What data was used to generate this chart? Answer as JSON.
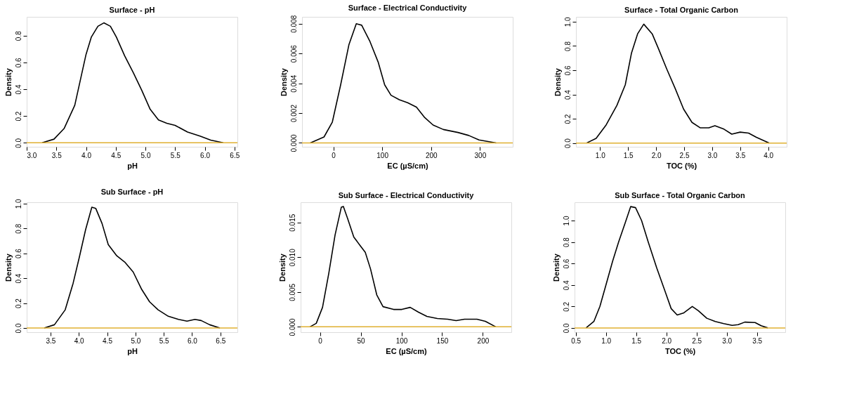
{
  "chart_data": [
    {
      "type": "line",
      "title": "Surface - pH",
      "xlabel": "pH",
      "ylabel": "Density",
      "xlim": [
        3.0,
        6.55
      ],
      "ylim": [
        -0.03,
        0.94
      ],
      "xticks": [
        {
          "value": 3.0,
          "label": "3.0"
        },
        {
          "value": 3.5,
          "label": "3.5"
        },
        {
          "value": 4.0,
          "label": "4.0"
        },
        {
          "value": 4.5,
          "label": "4.5"
        },
        {
          "value": 5.0,
          "label": "5.0"
        },
        {
          "value": 5.5,
          "label": "5.5"
        },
        {
          "value": 6.0,
          "label": "6.0"
        },
        {
          "value": 6.5,
          "label": "6.5"
        }
      ],
      "yticks": [
        {
          "value": 0,
          "label": "0.0"
        },
        0.2,
        0.4,
        0.6,
        0.8
      ],
      "grid": false,
      "marker": "none",
      "line_style": "solid",
      "ref_lines": [
        {
          "axis": "y",
          "value": 0,
          "color": "#e0b030"
        }
      ],
      "series": [
        {
          "color": "#000000",
          "x": [
            3.26,
            3.46,
            3.63,
            3.81,
            3.92,
            4.0,
            4.09,
            4.2,
            4.3,
            4.41,
            4.51,
            4.65,
            4.8,
            4.94,
            5.08,
            5.22,
            5.36,
            5.5,
            5.71,
            5.92,
            6.1,
            6.31
          ],
          "values": [
            0,
            0.027,
            0.106,
            0.28,
            0.5,
            0.66,
            0.79,
            0.87,
            0.895,
            0.87,
            0.79,
            0.65,
            0.52,
            0.39,
            0.25,
            0.17,
            0.146,
            0.13,
            0.08,
            0.05,
            0.02,
            0
          ]
        }
      ]
    },
    {
      "type": "line",
      "title": "Surface - Electrical Conductivity",
      "xlabel": "EC (µS/cm)",
      "ylabel": "Density",
      "xlim": [
        -64,
        367
      ],
      "ylim": [
        -0.00026,
        0.00846
      ],
      "xticks": [
        0,
        100,
        200,
        300
      ],
      "yticks": [
        {
          "value": 0,
          "label": "0.000"
        },
        {
          "value": 0.002,
          "label": "0.002"
        },
        {
          "value": 0.004,
          "label": "0.004"
        },
        {
          "value": 0.006,
          "label": "0.006"
        },
        {
          "value": 0.008,
          "label": "0.008"
        }
      ],
      "grid": false,
      "marker": "none",
      "line_style": "solid",
      "ref_lines": [
        {
          "axis": "y",
          "value": 0,
          "color": "#e0b030"
        }
      ],
      "series": [
        {
          "color": "#000000",
          "x": [
            -47,
            -19,
            -2,
            15,
            32,
            47,
            58,
            75,
            92,
            105,
            118,
            135,
            152,
            170,
            187,
            204,
            225,
            255,
            277,
            298,
            333
          ],
          "values": [
            0,
            0.0004,
            0.0014,
            0.0039,
            0.0066,
            0.008,
            0.0079,
            0.0068,
            0.0054,
            0.0039,
            0.0032,
            0.0029,
            0.0027,
            0.0024,
            0.0017,
            0.0012,
            0.0009,
            0.0007,
            0.0005,
            0.0002,
            0
          ]
        }
      ]
    },
    {
      "type": "line",
      "title": "Surface - Total Organic Carbon",
      "xlabel": "TOC (%)",
      "ylabel": "Density",
      "xlim": [
        0.57,
        4.33
      ],
      "ylim": [
        -0.031,
        1.04
      ],
      "xticks": [
        {
          "value": 1.0,
          "label": "1.0"
        },
        1.5,
        {
          "value": 2.0,
          "label": "2.0"
        },
        2.5,
        {
          "value": 3.0,
          "label": "3.0"
        },
        3.5,
        {
          "value": 4.0,
          "label": "4.0"
        }
      ],
      "yticks": [
        {
          "value": 0,
          "label": "0.0"
        },
        0.2,
        0.4,
        0.6,
        0.8,
        {
          "value": 1.0,
          "label": "1.0"
        }
      ],
      "grid": false,
      "marker": "none",
      "line_style": "solid",
      "ref_lines": [
        {
          "axis": "y",
          "value": 0,
          "color": "#e0b030"
        }
      ],
      "series": [
        {
          "color": "#000000",
          "x": [
            0.76,
            0.93,
            1.11,
            1.3,
            1.45,
            1.56,
            1.67,
            1.78,
            1.93,
            2.04,
            2.19,
            2.34,
            2.49,
            2.64,
            2.79,
            2.94,
            3.05,
            3.2,
            3.35,
            3.5,
            3.65,
            3.79,
            4.02
          ],
          "values": [
            0,
            0.038,
            0.15,
            0.31,
            0.48,
            0.74,
            0.9,
            0.98,
            0.9,
            0.78,
            0.61,
            0.45,
            0.28,
            0.17,
            0.125,
            0.125,
            0.143,
            0.117,
            0.073,
            0.09,
            0.082,
            0.047,
            0
          ]
        }
      ]
    },
    {
      "type": "line",
      "title": "Sub Surface - pH",
      "xlabel": "pH",
      "ylabel": "Density",
      "xlim": [
        3.08,
        6.8
      ],
      "ylim": [
        -0.034,
        1.01
      ],
      "xticks": [
        3.5,
        {
          "value": 4.0,
          "label": "4.0"
        },
        4.5,
        {
          "value": 5.0,
          "label": "5.0"
        },
        5.5,
        {
          "value": 6.0,
          "label": "6.0"
        },
        6.5
      ],
      "yticks": [
        {
          "value": 0,
          "label": "0.0"
        },
        0.2,
        0.4,
        0.6,
        0.8,
        {
          "value": 1.0,
          "label": "1.0"
        }
      ],
      "grid": false,
      "marker": "none",
      "line_style": "solid",
      "ref_lines": [
        {
          "axis": "y",
          "value": 0,
          "color": "#e0b030"
        }
      ],
      "series": [
        {
          "color": "#000000",
          "x": [
            3.39,
            3.57,
            3.76,
            3.9,
            4.01,
            4.12,
            4.23,
            4.3,
            4.41,
            4.52,
            4.67,
            4.81,
            4.96,
            5.11,
            5.25,
            5.4,
            5.58,
            5.76,
            5.91,
            6.05,
            6.16,
            6.31,
            6.49
          ],
          "values": [
            0,
            0.026,
            0.146,
            0.36,
            0.57,
            0.79,
            0.97,
            0.96,
            0.84,
            0.67,
            0.58,
            0.53,
            0.45,
            0.31,
            0.21,
            0.146,
            0.094,
            0.069,
            0.055,
            0.069,
            0.06,
            0.026,
            0
          ]
        }
      ]
    },
    {
      "type": "line",
      "title": "Sub Surface - Electrical Conductivity",
      "xlabel": "EC (µS/cm)",
      "ylabel": "Density",
      "xlim": [
        -23.8,
        235
      ],
      "ylim": [
        -0.00077,
        0.0179
      ],
      "xticks": [
        0,
        50,
        100,
        150,
        200
      ],
      "yticks": [
        {
          "value": 0,
          "label": "0.000"
        },
        {
          "value": 0.005,
          "label": "0.005"
        },
        {
          "value": 0.01,
          "label": "0.010"
        },
        {
          "value": 0.015,
          "label": "0.015"
        }
      ],
      "grid": false,
      "marker": "none",
      "line_style": "solid",
      "ref_lines": [
        {
          "axis": "y",
          "value": 0,
          "color": "#e0b030"
        }
      ],
      "series": [
        {
          "color": "#000000",
          "x": [
            -12.3,
            -4.6,
            3.1,
            10.8,
            18.5,
            26.2,
            28.7,
            33.8,
            41.5,
            49.2,
            55.6,
            62.1,
            69.7,
            77.4,
            90.3,
            100.5,
            110.8,
            121.0,
            131.3,
            144.1,
            156.9,
            167.2,
            177.4,
            192.8,
            203.1,
            215.9
          ],
          "values": [
            0,
            0.0005,
            0.0028,
            0.0077,
            0.0132,
            0.0172,
            0.0173,
            0.0156,
            0.0129,
            0.0117,
            0.0107,
            0.0083,
            0.0046,
            0.0029,
            0.0025,
            0.0025,
            0.0028,
            0.0021,
            0.0015,
            0.0012,
            0.0011,
            0.0009,
            0.0011,
            0.0011,
            0.0008,
            0
          ]
        }
      ]
    },
    {
      "type": "line",
      "title": "Sub Surface - Total Organic Carbon",
      "xlabel": "TOC (%)",
      "ylabel": "Density",
      "xlim": [
        0.48,
        3.97
      ],
      "ylim": [
        -0.04,
        1.17
      ],
      "xticks": [
        0.5,
        {
          "value": 1.0,
          "label": "1.0"
        },
        1.5,
        {
          "value": 2.0,
          "label": "2.0"
        },
        2.5,
        {
          "value": 3.0,
          "label": "3.0"
        },
        3.5
      ],
      "yticks": [
        {
          "value": 0,
          "label": "0.0"
        },
        0.2,
        0.4,
        0.6,
        0.8,
        {
          "value": 1.0,
          "label": "1.0"
        }
      ],
      "grid": false,
      "marker": "none",
      "line_style": "solid",
      "ref_lines": [
        {
          "axis": "y",
          "value": 0,
          "color": "#e0b030"
        }
      ],
      "series": [
        {
          "color": "#000000",
          "x": [
            0.67,
            0.8,
            0.9,
            1.0,
            1.11,
            1.21,
            1.32,
            1.41,
            1.49,
            1.59,
            1.7,
            1.84,
            1.98,
            2.08,
            2.18,
            2.29,
            2.43,
            2.53,
            2.67,
            2.81,
            2.95,
            3.09,
            3.19,
            3.3,
            3.47,
            3.57,
            3.68
          ],
          "values": [
            0,
            0.06,
            0.2,
            0.4,
            0.62,
            0.8,
            0.98,
            1.13,
            1.12,
            1.0,
            0.8,
            0.56,
            0.34,
            0.18,
            0.12,
            0.14,
            0.2,
            0.16,
            0.09,
            0.06,
            0.04,
            0.024,
            0.03,
            0.054,
            0.05,
            0.02,
            0
          ]
        }
      ]
    }
  ]
}
